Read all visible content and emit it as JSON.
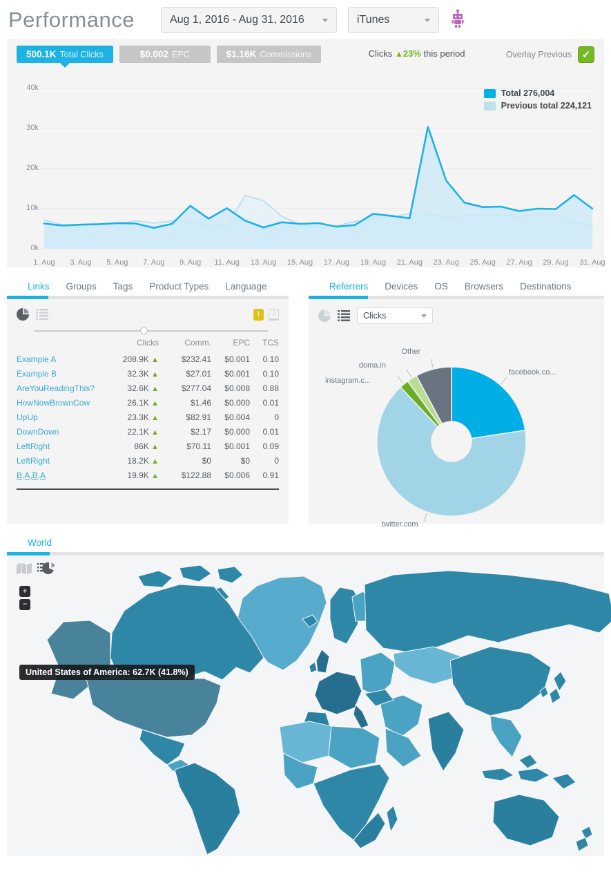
{
  "colors": {
    "accent": "#1db2e2",
    "green": "#74b822",
    "chip_gray": "#c6c6c6"
  },
  "icons": {
    "up_arrow": "▲",
    "check": "✓",
    "plus": "+",
    "minus": "−",
    "caret": "▾"
  },
  "header": {
    "title": "Performance",
    "date_range": "Aug 1, 2016 - Aug 31, 2016",
    "group_filter": "iTunes"
  },
  "stats": {
    "chips": [
      {
        "value": "500.1K",
        "label": "Total Clicks",
        "active": true
      },
      {
        "value": "$0.002",
        "label": "EPC",
        "active": false
      },
      {
        "value": "$1.16K",
        "label": "Commissions",
        "active": false
      }
    ],
    "change": {
      "prefix": "Clicks",
      "percent": "23%",
      "suffix": "this period"
    },
    "overlay_label": "Overlay Previous",
    "overlay_checked": true
  },
  "chart_data": [
    {
      "type": "area",
      "title": "Clicks by day, Aug 1 - Aug 31 2016, with previous period overlay",
      "days": 31,
      "xticks": [
        "1. Aug",
        "3. Aug",
        "5. Aug",
        "7. Aug",
        "9. Aug",
        "11. Aug",
        "13. Aug",
        "15. Aug",
        "17. Aug",
        "19. Aug",
        "21. Aug",
        "23. Aug",
        "25. Aug",
        "27. Aug",
        "29. Aug",
        "31. Aug"
      ],
      "yticks": [
        "40k",
        "30k",
        "20k",
        "10k",
        "0k"
      ],
      "ylim_k": [
        0,
        40
      ],
      "grid": true,
      "legend_position": "top-right",
      "series": [
        {
          "name": "Total",
          "total_label": "Total 276,004",
          "color": "#1fb1e4",
          "fill": "#cdeaf7",
          "fill_opacity": 0.8,
          "width": 2.6,
          "values_k": [
            6.3,
            5.8,
            6.0,
            6.1,
            6.4,
            6.3,
            5.2,
            6.2,
            10.7,
            7.5,
            10.1,
            7.0,
            5.3,
            6.6,
            6.2,
            6.4,
            5.5,
            5.9,
            8.7,
            8.2,
            7.6,
            30.4,
            17.0,
            11.5,
            10.4,
            10.5,
            9.4,
            10.0,
            9.9,
            13.4,
            10.0
          ]
        },
        {
          "name": "Previous total",
          "total_label": "Previous total 224,121",
          "color": "#c2dfee",
          "fill": "#e4f1f8",
          "fill_opacity": 0.9,
          "width": 2,
          "values_k": [
            7.2,
            5.9,
            6.1,
            6.3,
            6.2,
            7.0,
            6.4,
            6.9,
            6.7,
            6.1,
            5.7,
            13.3,
            12.0,
            8.1,
            6.0,
            5.5,
            5.7,
            6.8,
            7.5,
            7.9,
            8.8,
            8.8,
            7.8,
            8.3,
            8.4,
            8.4,
            8.0,
            8.7,
            8.9,
            6.5,
            5.8
          ]
        }
      ]
    },
    {
      "type": "pie",
      "title": "Referrers by Clicks",
      "donut": true,
      "slices": [
        {
          "label": "facebook.co...",
          "pct": 22.6,
          "color": "#00aee6"
        },
        {
          "label": "twitter.com",
          "pct": 65.4,
          "color": "#a0d4e6"
        },
        {
          "label": "instagram.c...",
          "pct": 2.0,
          "color": "#68ae26"
        },
        {
          "label": "doma.in",
          "pct": 2.2,
          "color": "#b8dc93"
        },
        {
          "label": "Other",
          "pct": 7.8,
          "color": "#6a7380"
        }
      ]
    },
    {
      "type": "heatmap",
      "title": "World clicks choropleth",
      "visible_values": [
        {
          "region": "United States of America",
          "clicks": "62.7K",
          "share": "41.8%"
        }
      ]
    }
  ],
  "legend": {
    "total": "Total 276,004",
    "previous": "Previous total 224,121"
  },
  "links_panel": {
    "tabs": [
      "Links",
      "Groups",
      "Tags",
      "Product Types",
      "Language"
    ],
    "active_tab": "Links",
    "columns": {
      "clicks": "Clicks",
      "comm": "Comm.",
      "epc": "EPC",
      "tcs": "TCS"
    },
    "warning_label": "!",
    "rows": [
      {
        "name": "Example A",
        "clicks": "208.9K",
        "comm": "$232.41",
        "epc": "$0.001",
        "tcs": "0.10"
      },
      {
        "name": "Example B",
        "clicks": "32.3K",
        "comm": "$27.01",
        "epc": "$0.001",
        "tcs": "0.10"
      },
      {
        "name": "AreYouReadingThis?",
        "clicks": "32.6K",
        "comm": "$277.04",
        "epc": "$0.008",
        "tcs": "0.88"
      },
      {
        "name": "HowNowBrownCow",
        "clicks": "26.1K",
        "comm": "$1.46",
        "epc": "$0.000",
        "tcs": "0.01"
      },
      {
        "name": "UpUp",
        "clicks": "23.3K",
        "comm": "$82.91",
        "epc": "$0.004",
        "tcs": "0"
      },
      {
        "name": "DownDown",
        "clicks": "22.1K",
        "comm": "$2.17",
        "epc": "$0.000",
        "tcs": "0.01"
      },
      {
        "name": "LeftRight",
        "clicks": "86K",
        "comm": "$70.11",
        "epc": "$0.001",
        "tcs": "0.09"
      },
      {
        "name": "LeftRight",
        "clicks": "18.2K",
        "comm": "$0",
        "epc": "$0",
        "tcs": "0"
      },
      {
        "name": "B,A,B,A",
        "clicks": "19.9K",
        "comm": "$122.88",
        "epc": "$0.006",
        "tcs": "0.91"
      }
    ]
  },
  "referrers_panel": {
    "tabs": [
      "Referrers",
      "Devices",
      "OS",
      "Browsers",
      "Destinations"
    ],
    "active_tab": "Referrers",
    "metric_dropdown": "Clicks"
  },
  "map_panel": {
    "tab": "World",
    "tooltip": "United States of America: 62.7K (41.8%)",
    "zoom_in": "+",
    "zoom_out": "−",
    "palette": {
      "us": "#49829b",
      "mid": "#2f87a7",
      "dark": "#2a7f9f",
      "darkest": "#256e8e",
      "midlight": "#4ba3c3",
      "light": "#66b6d4",
      "greenland": "#57abcc"
    }
  }
}
